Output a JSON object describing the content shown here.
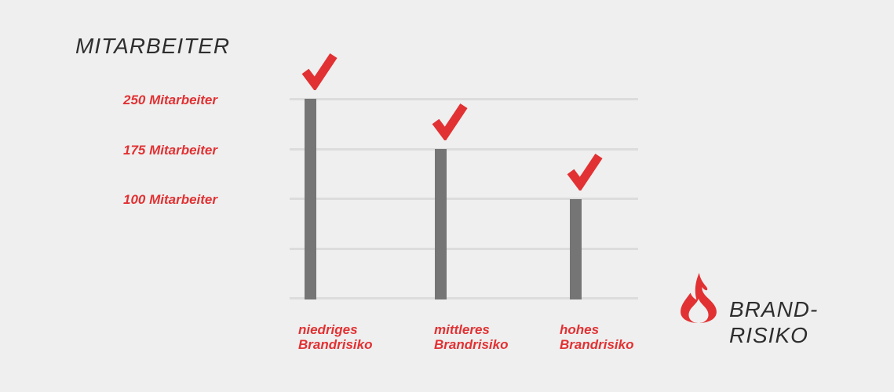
{
  "colors": {
    "background": "#efefef",
    "accent_red": "#e23133",
    "bar_gray": "#757575",
    "grid_gray": "#dcdcdc",
    "text_dark": "#2e2e2e"
  },
  "y_axis": {
    "title": "MITARBEITER",
    "tick_labels": [
      "250 Mitarbeiter",
      "175 Mitarbeiter",
      "100 Mitarbeiter"
    ]
  },
  "x_axis": {
    "tick_labels": [
      [
        "niedriges",
        "Brandrisiko"
      ],
      [
        "mittleres",
        "Brandrisiko"
      ],
      [
        "hohes",
        "Brandrisiko"
      ]
    ]
  },
  "legend": {
    "label_line1": "BRAND-",
    "label_line2": "RISIKO",
    "icon": "flame-icon"
  },
  "chart_data": {
    "type": "bar",
    "title": "MITARBEITER",
    "categories": [
      "niedriges Brandrisiko",
      "mittleres Brandrisiko",
      "hohes Brandrisiko"
    ],
    "values": [
      250,
      175,
      100
    ],
    "ytick_labels": [
      "250 Mitarbeiter",
      "175 Mitarbeiter",
      "100 Mitarbeiter"
    ],
    "ytick_values": [
      250,
      175,
      100
    ],
    "ylabel": "MITARBEITER",
    "xlabel": "BRAND-RISIKO",
    "ylim": [
      -50,
      250
    ],
    "gridlines": 5,
    "gridline_step": 75,
    "grid": true,
    "legend_position": "bottom-right",
    "bar_color": "#757575",
    "accent_color": "#e23133",
    "annotations": [
      "red checkmark above each bar"
    ]
  }
}
